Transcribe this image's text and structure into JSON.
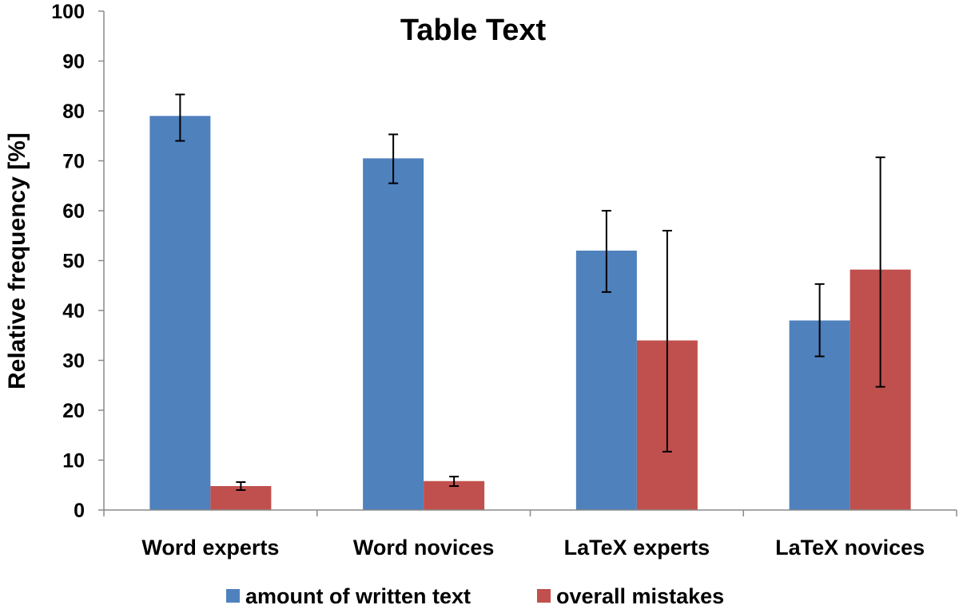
{
  "chart_data": {
    "type": "bar",
    "title": "Table Text",
    "xlabel": "",
    "ylabel": "Relative frequency [%]",
    "ylim": [
      0,
      100
    ],
    "yticks": [
      0,
      10,
      20,
      30,
      40,
      50,
      60,
      70,
      80,
      90,
      100
    ],
    "categories": [
      "Word experts",
      "Word novices",
      "LaTeX experts",
      "LaTeX novices"
    ],
    "series": [
      {
        "name": "amount of written text",
        "color": "#4f81bd",
        "values": [
          79,
          70.5,
          52,
          38
        ],
        "error_low": [
          74,
          65.5,
          43.7,
          30.8
        ],
        "error_high": [
          83.3,
          75.3,
          60,
          45.3
        ]
      },
      {
        "name": "overall mistakes",
        "color": "#c0504d",
        "values": [
          4.8,
          5.8,
          34,
          48.2
        ],
        "error_low": [
          4,
          4.8,
          11.7,
          24.7
        ],
        "error_high": [
          5.6,
          6.7,
          56,
          70.7
        ]
      }
    ],
    "legend_position": "bottom",
    "grid": false
  }
}
